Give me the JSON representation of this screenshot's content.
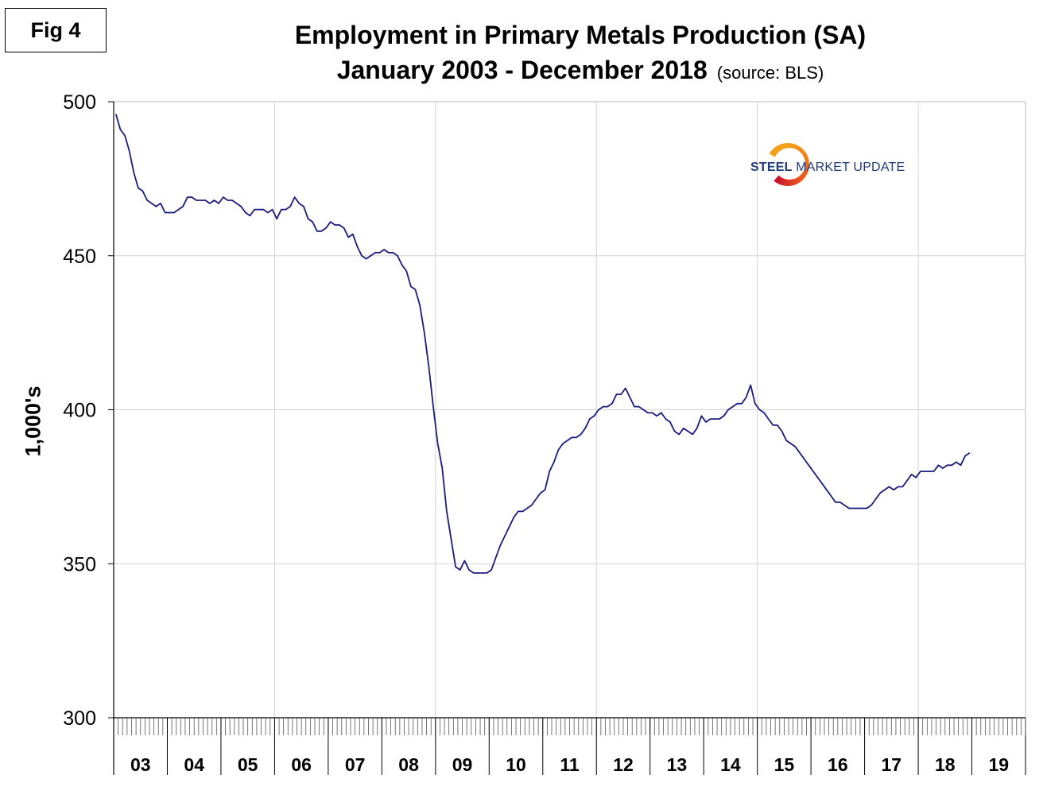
{
  "fig_label": "Fig 4",
  "chart_data": {
    "type": "line",
    "title": "Employment in Primary Metals Production (SA)",
    "subtitle": "January 2003 - December 2018",
    "source": "(source: BLS)",
    "ylabel": "1,000's",
    "xlabel": "",
    "ylim": [
      300,
      500
    ],
    "yticks": [
      "300",
      "350",
      "400",
      "450",
      "500"
    ],
    "x_tick_labels": [
      "03",
      "04",
      "05",
      "06",
      "07",
      "08",
      "09",
      "10",
      "11",
      "12",
      "13",
      "14",
      "15",
      "16",
      "17",
      "18",
      "19"
    ],
    "grid": true,
    "series_color": "#1a1a80",
    "series": [
      {
        "values": [
          496,
          491,
          489,
          484,
          477,
          472,
          471,
          468,
          467,
          466,
          467,
          464,
          464,
          464,
          465,
          466,
          469,
          469,
          468,
          468,
          468,
          467,
          468,
          467,
          469,
          468,
          468,
          467,
          466,
          464,
          463,
          465,
          465,
          465,
          464,
          465,
          462,
          465,
          465,
          466,
          469,
          467,
          466,
          462,
          461,
          458,
          458,
          459,
          461,
          460,
          460,
          459,
          456,
          457,
          453,
          450,
          449,
          450,
          451,
          451,
          452,
          451,
          451,
          450,
          447,
          445,
          440,
          439,
          434,
          425,
          414,
          401,
          389,
          381,
          367,
          358,
          349,
          348,
          351,
          348,
          347,
          347,
          347,
          347,
          348,
          352,
          356,
          359,
          362,
          365,
          367,
          367,
          368,
          369,
          371,
          373,
          374,
          380,
          383,
          387,
          389,
          390,
          391,
          391,
          392,
          394,
          397,
          398,
          400,
          401,
          401,
          402,
          405,
          405,
          407,
          404,
          401,
          401,
          400,
          399,
          399,
          398,
          399,
          397,
          396,
          393,
          392,
          394,
          393,
          392,
          394,
          398,
          396,
          397,
          397,
          397,
          398,
          400,
          401,
          402,
          402,
          404,
          408,
          402,
          400,
          399,
          397,
          395,
          395,
          393,
          390,
          389,
          388,
          386,
          384,
          382,
          380,
          378,
          376,
          374,
          372,
          370,
          370,
          369,
          368,
          368,
          368,
          368,
          368,
          369,
          371,
          373,
          374,
          375,
          374,
          375,
          375,
          377,
          379,
          378,
          380,
          380,
          380,
          380,
          382,
          381,
          382,
          382,
          383,
          382,
          385,
          386
        ]
      }
    ]
  }
}
